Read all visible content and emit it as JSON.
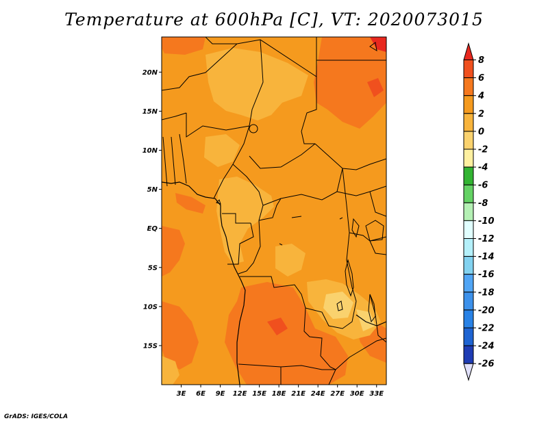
{
  "title": "Temperature at 600hPa [C], VT: 2020073015",
  "credit": "GrADS: IGES/COLA",
  "map": {
    "region": "Central Africa",
    "lat_range": [
      -20,
      24.5
    ],
    "lon_range": [
      0,
      34.5
    ],
    "lat_ticks": [
      {
        "value": 20,
        "label": "20N"
      },
      {
        "value": 15,
        "label": "15N"
      },
      {
        "value": 10,
        "label": "10N"
      },
      {
        "value": 5,
        "label": "5N"
      },
      {
        "value": 0,
        "label": "EQ"
      },
      {
        "value": -5,
        "label": "5S"
      },
      {
        "value": -10,
        "label": "10S"
      },
      {
        "value": -15,
        "label": "15S"
      }
    ],
    "lon_ticks": [
      {
        "value": 3,
        "label": "3E"
      },
      {
        "value": 6,
        "label": "6E"
      },
      {
        "value": 9,
        "label": "9E"
      },
      {
        "value": 12,
        "label": "12E"
      },
      {
        "value": 15,
        "label": "15E"
      },
      {
        "value": 18,
        "label": "18E"
      },
      {
        "value": 21,
        "label": "21E"
      },
      {
        "value": 24,
        "label": "24E"
      },
      {
        "value": 27,
        "label": "27E"
      },
      {
        "value": 30,
        "label": "30E"
      },
      {
        "value": 33,
        "label": "33E"
      }
    ]
  },
  "colorbar": {
    "labels": [
      "8",
      "6",
      "4",
      "2",
      "0",
      "-2",
      "-4",
      "-6",
      "-8",
      "-10",
      "-12",
      "-14",
      "-16",
      "-18",
      "-20",
      "-22",
      "-24",
      "-26"
    ],
    "colors": [
      "#e8281e",
      "#f0501e",
      "#f5781e",
      "#f59a1e",
      "#f8b43c",
      "#fad26e",
      "#fef0a0",
      "#32b432",
      "#64d264",
      "#b4f0b4",
      "#e1ffff",
      "#b4f0fa",
      "#82d2f0",
      "#50a5f5",
      "#3c91eb",
      "#2882e6",
      "#1e64d2",
      "#1e3cb4",
      "#0a0a6e"
    ],
    "over_color": "#e8281e",
    "under_color": "#e0e0fa"
  }
}
